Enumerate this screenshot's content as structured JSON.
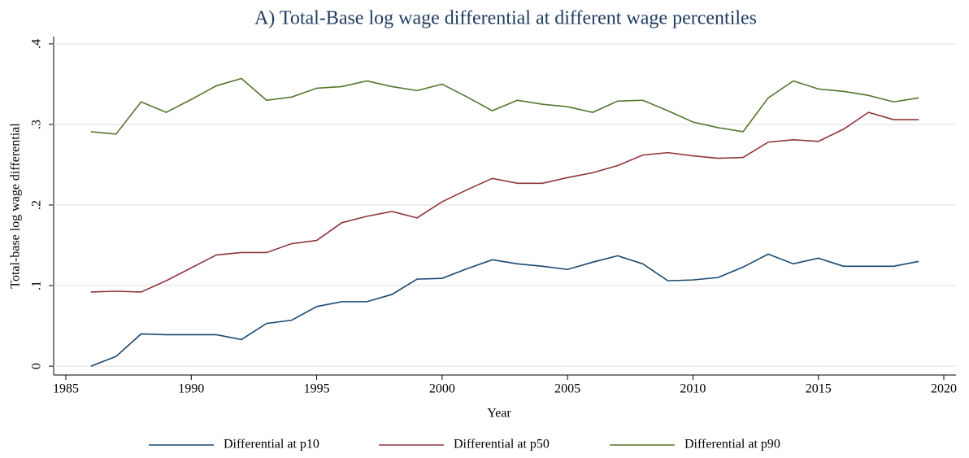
{
  "chart_data": {
    "type": "line",
    "title": "A) Total-Base log wage differential at different wage percentiles",
    "x_label": "Year",
    "y_label": "Total-base log wage differential",
    "x": [
      1986,
      1987,
      1988,
      1989,
      1990,
      1991,
      1992,
      1993,
      1994,
      1995,
      1996,
      1997,
      1998,
      1999,
      2000,
      2001,
      2002,
      2003,
      2004,
      2005,
      2006,
      2007,
      2008,
      2009,
      2010,
      2011,
      2012,
      2013,
      2014,
      2015,
      2016,
      2017,
      2018,
      2019
    ],
    "series": [
      {
        "name": "Differential at p10",
        "color": "#1a476f",
        "values": [
          0.0,
          0.012,
          0.04,
          0.039,
          0.039,
          0.039,
          0.033,
          0.053,
          0.057,
          0.074,
          0.08,
          0.08,
          0.089,
          0.108,
          0.109,
          0.121,
          0.132,
          0.127,
          0.124,
          0.12,
          0.129,
          0.137,
          0.127,
          0.106,
          0.107,
          0.11,
          0.123,
          0.139,
          0.127,
          0.134,
          0.124,
          0.124,
          0.124,
          0.13
        ]
      },
      {
        "name": "Differential at p50",
        "color": "#90353b",
        "values": [
          0.092,
          0.093,
          0.092,
          0.106,
          0.122,
          0.138,
          0.141,
          0.141,
          0.152,
          0.156,
          0.178,
          0.186,
          0.192,
          0.184,
          0.204,
          0.219,
          0.233,
          0.227,
          0.227,
          0.234,
          0.24,
          0.249,
          0.262,
          0.265,
          0.261,
          0.258,
          0.259,
          0.278,
          0.281,
          0.279,
          0.294,
          0.315,
          0.306,
          0.306
        ]
      },
      {
        "name": "Differential at p90",
        "color": "#55752f",
        "values": [
          0.291,
          0.288,
          0.328,
          0.315,
          0.331,
          0.348,
          0.357,
          0.33,
          0.334,
          0.345,
          0.347,
          0.354,
          0.347,
          0.342,
          0.35,
          0.334,
          0.317,
          0.33,
          0.325,
          0.322,
          0.315,
          0.329,
          0.33,
          0.317,
          0.303,
          0.296,
          0.291,
          0.333,
          0.354,
          0.344,
          0.341,
          0.336,
          0.328,
          0.333
        ]
      }
    ],
    "xlim": [
      1985,
      2020
    ],
    "xticks": [
      1985,
      1990,
      1995,
      2000,
      2005,
      2010,
      2015,
      2020
    ],
    "ylim": [
      -0.011,
      0.409
    ],
    "yticks": [
      0,
      {
        "value": 0.1,
        "label": ".1"
      },
      {
        "value": 0.2,
        "label": ".2"
      },
      {
        "value": 0.3,
        "label": ".3"
      },
      {
        "value": 0.4,
        "label": ".4"
      }
    ],
    "grid": true,
    "legend": "bottom"
  }
}
